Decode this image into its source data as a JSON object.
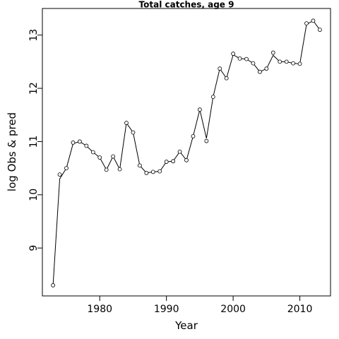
{
  "chart_data": {
    "type": "line",
    "title": "Total catches, age 9",
    "xlabel": "Year",
    "ylabel": "log Obs & pred",
    "xlim": [
      1971.4,
      2014.6
    ],
    "ylim": [
      8.1,
      13.5
    ],
    "xticks": [
      1980,
      1990,
      2000,
      2010
    ],
    "yticks": [
      9,
      10,
      11,
      12,
      13
    ],
    "grid": false,
    "series": [
      {
        "kind": "observed-points",
        "x": [
          1973,
          1974,
          1975,
          1976,
          1977,
          1978,
          1979,
          1980,
          1981,
          1982,
          1983,
          1984,
          1985,
          1986,
          1987,
          1988,
          1989,
          1990,
          1991,
          1992,
          1993,
          1994,
          1995,
          1996,
          1997,
          1998,
          1999,
          2000,
          2001,
          2002,
          2003,
          2004,
          2005,
          2006,
          2007,
          2008,
          2009,
          2010,
          2011,
          2012,
          2013
        ],
        "y": [
          8.3,
          10.38,
          10.5,
          10.98,
          11.0,
          10.92,
          10.8,
          10.7,
          10.47,
          10.72,
          10.48,
          11.35,
          11.17,
          10.55,
          10.41,
          10.43,
          10.44,
          10.62,
          10.63,
          10.81,
          10.65,
          11.1,
          11.6,
          11.01,
          11.84,
          12.37,
          12.19,
          12.65,
          12.56,
          12.55,
          12.47,
          12.31,
          12.37,
          12.67,
          12.5,
          12.5,
          12.47,
          12.46,
          13.22,
          13.27,
          13.1
        ]
      },
      {
        "kind": "predicted-line",
        "x": [
          1973,
          1974,
          1975,
          1976,
          1977,
          1978,
          1979,
          1980,
          1981,
          1982,
          1983,
          1984,
          1985,
          1986,
          1987,
          1988,
          1989,
          1990,
          1991,
          1992,
          1993,
          1994,
          1995,
          1996,
          1997,
          1998,
          1999,
          2000,
          2001,
          2002,
          2003,
          2004,
          2005,
          2006,
          2007,
          2008,
          2009,
          2010,
          2011,
          2012,
          2013
        ],
        "y": [
          8.3,
          10.3,
          10.5,
          10.96,
          11.0,
          10.92,
          10.8,
          10.7,
          10.47,
          10.72,
          10.48,
          11.35,
          11.17,
          10.55,
          10.41,
          10.43,
          10.44,
          10.62,
          10.63,
          10.81,
          10.65,
          11.1,
          11.6,
          11.06,
          11.84,
          12.37,
          12.19,
          12.63,
          12.56,
          12.55,
          12.47,
          12.31,
          12.37,
          12.62,
          12.5,
          12.5,
          12.47,
          12.46,
          13.2,
          13.27,
          13.1
        ]
      }
    ]
  }
}
